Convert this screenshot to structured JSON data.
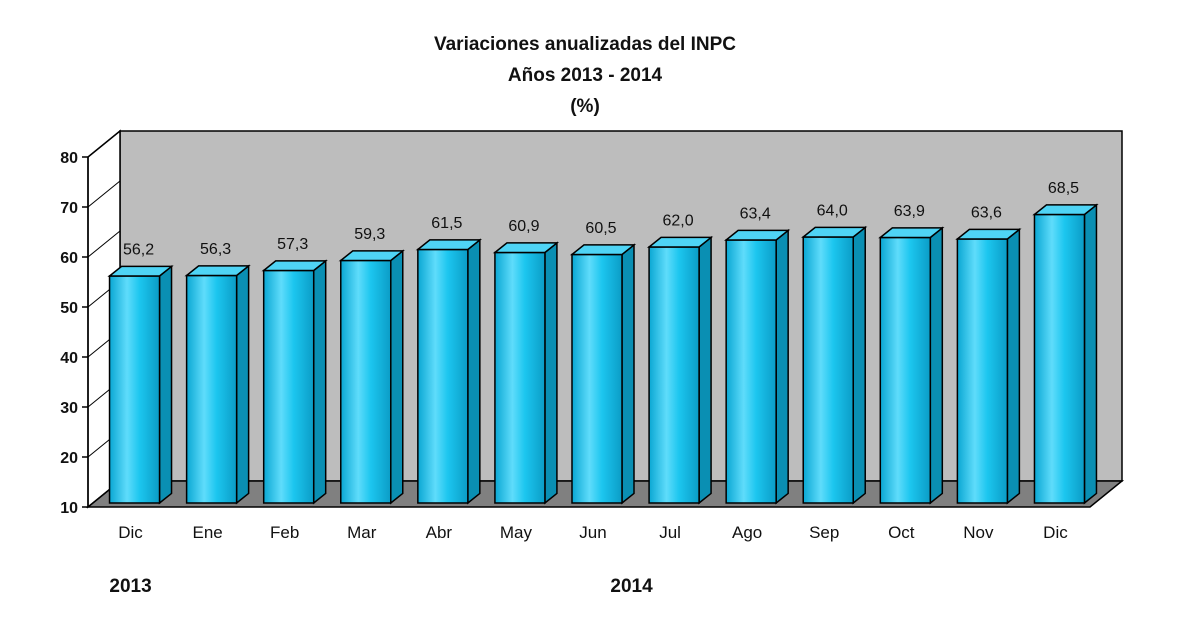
{
  "chart_data": {
    "type": "bar",
    "title": [
      "Variaciones anualizadas del INPC",
      "Años 2013 - 2014",
      "(%)"
    ],
    "categories": [
      "Dic",
      "Ene",
      "Feb",
      "Mar",
      "Abr",
      "May",
      "Jun",
      "Jul",
      "Ago",
      "Sep",
      "Oct",
      "Nov",
      "Dic"
    ],
    "values": [
      56.2,
      56.3,
      57.3,
      59.3,
      61.5,
      60.9,
      60.5,
      62.0,
      63.4,
      64.0,
      63.9,
      63.6,
      68.5
    ],
    "value_labels": [
      "56,2",
      "56,3",
      "57,3",
      "59,3",
      "61,5",
      "60,9",
      "60,5",
      "62,0",
      "63,4",
      "64,0",
      "63,9",
      "63,6",
      "68,5"
    ],
    "year_labels": [
      {
        "text": "2013",
        "category_index": 0
      },
      {
        "text": "2014",
        "category_index": 6.5
      }
    ],
    "ylim": [
      10,
      80
    ],
    "yticks": [
      10,
      20,
      30,
      40,
      50,
      60,
      70,
      80
    ],
    "xlabel": "",
    "ylabel": "",
    "grid": false,
    "legend": "none",
    "three_d": true,
    "colors": {
      "bar_front": "#19c3ee",
      "bar_front_highlight": "#7fe6ff",
      "bar_top": "#4fd4f5",
      "bar_side": "#0a8fb3",
      "back_wall": "#bdbdbd",
      "floor": "#808080",
      "outline": "#000000"
    }
  }
}
